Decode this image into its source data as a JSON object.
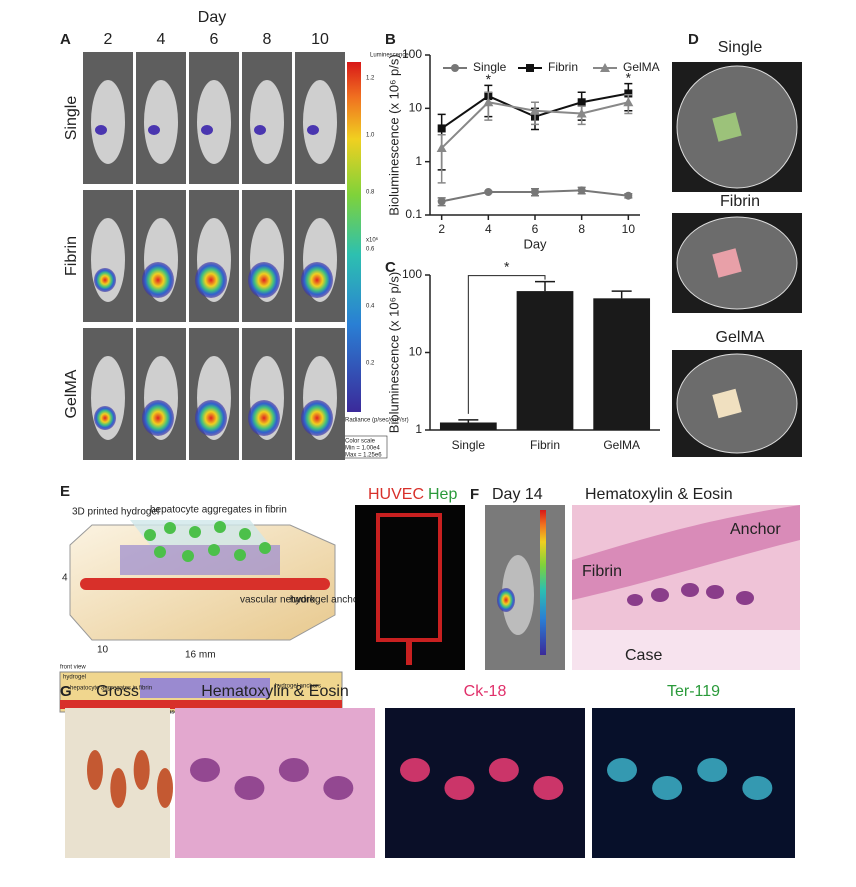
{
  "panel_a": {
    "label": "A",
    "day_title": "Day",
    "days": [
      "2",
      "4",
      "6",
      "8",
      "10"
    ],
    "rows": [
      "Single",
      "Fibrin",
      "GelMA"
    ],
    "colorbar": {
      "title": "Luminescence",
      "ticks": [
        "1.2",
        "1.0",
        "0.8",
        "0.6",
        "0.4",
        "0.2"
      ],
      "multiplier": "x10⁶",
      "unit": "Radiance (p/sec/cm²/sr)",
      "scale_title": "Color scale",
      "min": "Min = 1.00e4",
      "max": "Max = 1.25e6"
    }
  },
  "panel_b": {
    "label": "B"
  },
  "panel_c": {
    "label": "C"
  },
  "chart_data": [
    {
      "type": "line",
      "xlabel": "Day",
      "ylabel": "Bioluminescence (x 10⁶ p/s)",
      "x": [
        2,
        4,
        6,
        8,
        10
      ],
      "xlim": [
        1.5,
        10.5
      ],
      "xticks": [
        2,
        4,
        6,
        8,
        10
      ],
      "ylim": [
        0.1,
        100
      ],
      "yticks": [
        0.1,
        1,
        10,
        100
      ],
      "log_y": true,
      "legend": "top",
      "series": [
        {
          "name": "Single",
          "color": "#777777",
          "marker": "circle",
          "values": [
            0.18,
            0.27,
            0.27,
            0.29,
            0.23
          ],
          "errors": [
            0.03,
            0.01,
            0.04,
            0.04,
            0.02
          ]
        },
        {
          "name": "Fibrin",
          "color": "#111111",
          "marker": "square",
          "values": [
            4.2,
            17,
            7,
            13,
            19
          ],
          "errors": [
            3.5,
            10,
            3,
            7,
            10
          ]
        },
        {
          "name": "GelMA",
          "color": "#888888",
          "marker": "triangle",
          "values": [
            1.8,
            13,
            9,
            8,
            13
          ],
          "errors": [
            1.4,
            7,
            4,
            3,
            5
          ]
        }
      ],
      "annotations": [
        {
          "text": "*",
          "x": 4
        },
        {
          "text": "*",
          "x": 10
        }
      ]
    },
    {
      "type": "bar",
      "ylabel": "Bioluminescence (x 10⁶ p/s)",
      "categories": [
        "Single",
        "Fibrin",
        "GelMA"
      ],
      "values": [
        1.25,
        62,
        50
      ],
      "errors": [
        0.1,
        20,
        12
      ],
      "color": "#1a1a1a",
      "ylim": [
        1,
        100
      ],
      "yticks": [
        1,
        10,
        100
      ],
      "log_y": true,
      "annotation": "*"
    }
  ],
  "panel_d": {
    "label": "D",
    "titles": [
      "Single",
      "Fibrin",
      "GelMA"
    ]
  },
  "panel_e": {
    "label": "E",
    "printed_hydrogel": "3D printed hydrogel",
    "aggregates": "hepatocyte aggregates in fibrin",
    "dim_height": "4",
    "dim_depth": "10",
    "dim_length": "16 mm",
    "vascular": "vascular network",
    "anchors": "hydrogel anchors",
    "front_view": "front view",
    "fv_hydrogel": "hydrogel",
    "fv_aggregates": "hepatocyte aggregates in fibrin",
    "fv_anchors": "hydrogel anchors",
    "fv_vascular": "vascular network",
    "stain_a": "HUVEC",
    "stain_b": "Hep"
  },
  "panel_f": {
    "label": "F",
    "day": "Day 14",
    "he_title": "Hematoxylin & Eosin",
    "anchor": "Anchor",
    "fibrin": "Fibrin",
    "case": "Case"
  },
  "panel_g": {
    "label": "G",
    "titles": [
      "Gross",
      "Hematoxylin & Eosin",
      "Ck-18",
      "Ter-119"
    ]
  }
}
